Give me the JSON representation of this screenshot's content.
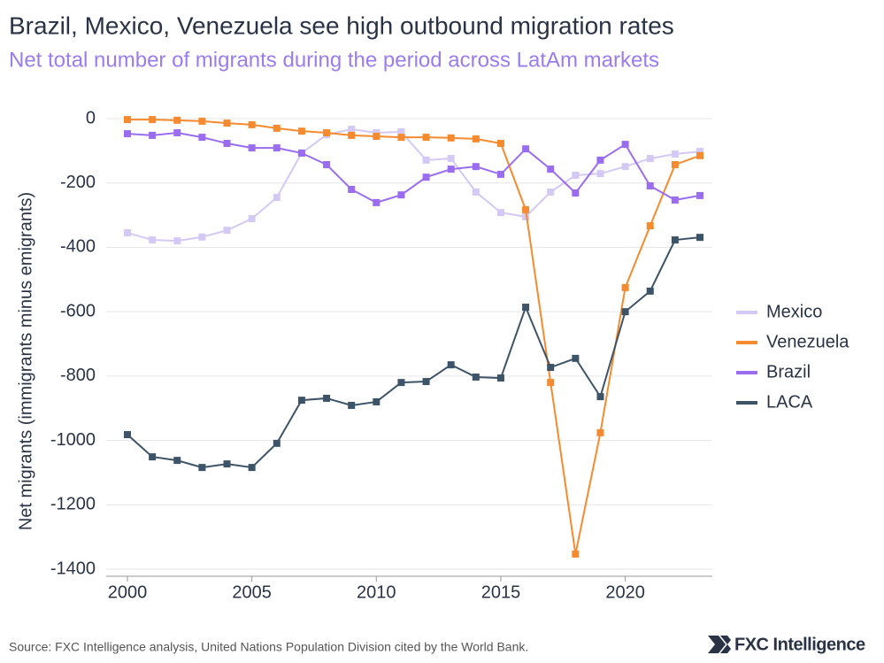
{
  "chart_data": {
    "type": "line",
    "title": "Brazil, Mexico, Venezuela see high outbound migration rates",
    "subtitle": "Net total number of migrants during the period across LatAm markets",
    "y_label": "Net migrants (immigrants minus emigrants)",
    "source": "Source: FXC Intelligence analysis, United Nations Population Division cited by the World Bank.",
    "brand": "FXC Intelligence",
    "x": [
      2000,
      2001,
      2002,
      2003,
      2004,
      2005,
      2006,
      2007,
      2008,
      2009,
      2010,
      2011,
      2012,
      2013,
      2014,
      2015,
      2016,
      2017,
      2018,
      2019,
      2020,
      2021,
      2022,
      2023
    ],
    "xlim": [
      2000,
      2023
    ],
    "xticks": [
      2000,
      2005,
      2010,
      2015,
      2020
    ],
    "ylim": [
      -1400,
      0
    ],
    "yticks": [
      0,
      -200,
      -400,
      -600,
      -800,
      -1000,
      -1200,
      -1400
    ],
    "grid": true,
    "legend": "right",
    "series": [
      {
        "name": "Mexico",
        "color": "#d4c8f5",
        "values": [
          -355,
          -377,
          -380,
          -368,
          -347,
          -311,
          -245,
          -107,
          -50,
          -33,
          -44,
          -41,
          -129,
          -124,
          -228,
          -292,
          -305,
          -228,
          -176,
          -171,
          -149,
          -124,
          -110,
          -102
        ]
      },
      {
        "name": "Venezuela",
        "color": "#f58a2e",
        "values": [
          -3,
          -3,
          -5,
          -8,
          -14,
          -19,
          -30,
          -39,
          -44,
          -52,
          -55,
          -58,
          -58,
          -60,
          -63,
          -77,
          -283,
          -820,
          -1353,
          -976,
          -525,
          -333,
          -143,
          -115
        ]
      },
      {
        "name": "Brazil",
        "color": "#9a6cf0",
        "values": [
          -47,
          -52,
          -44,
          -58,
          -77,
          -91,
          -91,
          -107,
          -143,
          -220,
          -261,
          -237,
          -182,
          -157,
          -149,
          -173,
          -94,
          -157,
          -231,
          -129,
          -80,
          -209,
          -253,
          -239
        ]
      },
      {
        "name": "LACA",
        "color": "#3d5468",
        "values": [
          -982,
          -1051,
          -1062,
          -1084,
          -1073,
          -1084,
          -1009,
          -875,
          -869,
          -891,
          -880,
          -820,
          -817,
          -765,
          -803,
          -806,
          -586,
          -773,
          -745,
          -864,
          -600,
          -536,
          -377,
          -369
        ]
      }
    ]
  }
}
